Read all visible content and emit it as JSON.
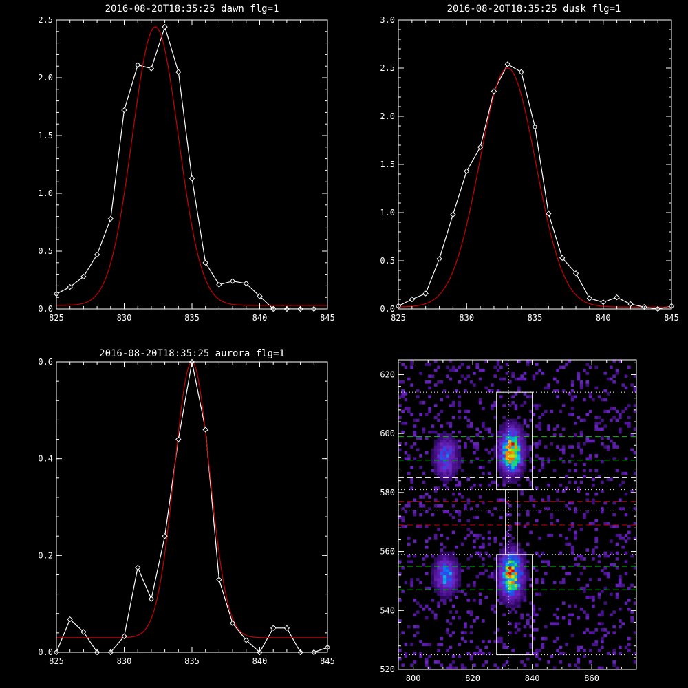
{
  "chart_data": [
    {
      "type": "line",
      "title": "2016-08-20T18:35:25 dawn flg=1",
      "xlim": [
        825,
        845
      ],
      "ylim": [
        0,
        2.5
      ],
      "xticks": [
        825,
        830,
        835,
        840,
        845
      ],
      "xtick_labels": [
        "825",
        "830",
        "835",
        "840",
        "845"
      ],
      "yticks": [
        0,
        0.5,
        1.0,
        1.5,
        2.0,
        2.5
      ],
      "ytick_labels": [
        "0.0",
        "0.5",
        "1.0",
        "1.5",
        "2.0",
        "2.5"
      ],
      "series": [
        {
          "color": "#ffffff",
          "marker": "diamond",
          "x": [
            825,
            826,
            827,
            828,
            829,
            830,
            831,
            832,
            833,
            834,
            835,
            836,
            837,
            838,
            839,
            840,
            841,
            842,
            843,
            844
          ],
          "y": [
            0.13,
            0.19,
            0.28,
            0.47,
            0.78,
            1.72,
            2.11,
            2.08,
            2.44,
            2.05,
            1.13,
            0.4,
            0.21,
            0.24,
            0.22,
            0.11,
            0.0,
            0.0,
            0.0,
            0.0
          ]
        },
        {
          "color": "#cc0000",
          "gaussian": {
            "a": 2.41,
            "mu": 832.3,
            "sigma": 1.7,
            "c": 0.03
          }
        }
      ]
    },
    {
      "type": "line",
      "title": "2016-08-20T18:35:25 dusk flg=1",
      "xlim": [
        825,
        845
      ],
      "ylim": [
        0,
        3.0
      ],
      "xticks": [
        825,
        830,
        835,
        840,
        845
      ],
      "xtick_labels": [
        "825",
        "830",
        "835",
        "840",
        "845"
      ],
      "yticks": [
        0,
        0.5,
        1.0,
        1.5,
        2.0,
        2.5,
        3.0
      ],
      "ytick_labels": [
        "0.0",
        "0.5",
        "1.0",
        "1.5",
        "2.0",
        "2.5",
        "3.0"
      ],
      "series": [
        {
          "color": "#ffffff",
          "marker": "diamond",
          "x": [
            825,
            826,
            827,
            828,
            829,
            830,
            831,
            832,
            833,
            834,
            835,
            836,
            837,
            838,
            839,
            840,
            841,
            842,
            843,
            844,
            845
          ],
          "y": [
            0.03,
            0.1,
            0.16,
            0.52,
            0.98,
            1.43,
            1.68,
            2.26,
            2.54,
            2.46,
            1.89,
            0.99,
            0.53,
            0.37,
            0.11,
            0.07,
            0.12,
            0.05,
            0.02,
            0.0,
            0.03
          ]
        },
        {
          "color": "#cc0000",
          "gaussian": {
            "a": 2.48,
            "mu": 833.0,
            "sigma": 2.05,
            "c": 0.02
          }
        }
      ]
    },
    {
      "type": "line",
      "title": "2016-08-20T18:35:25 aurora flg=1",
      "xlim": [
        825,
        845
      ],
      "ylim": [
        0,
        0.6
      ],
      "xticks": [
        825,
        830,
        835,
        840,
        845
      ],
      "xtick_labels": [
        "825",
        "830",
        "835",
        "840",
        "845"
      ],
      "yticks": [
        0,
        0.2,
        0.4,
        0.6
      ],
      "ytick_labels": [
        "0.0",
        "0.2",
        "0.4",
        "0.6"
      ],
      "series": [
        {
          "color": "#ffffff",
          "marker": "diamond",
          "x": [
            825,
            826,
            827,
            828,
            829,
            830,
            831,
            832,
            833,
            834,
            835,
            836,
            837,
            838,
            839,
            840,
            841,
            842,
            843,
            844,
            845
          ],
          "y": [
            0.0,
            0.068,
            0.042,
            0.0,
            0.0,
            0.033,
            0.175,
            0.11,
            0.24,
            0.44,
            0.6,
            0.46,
            0.15,
            0.06,
            0.025,
            0.0,
            0.05,
            0.05,
            0.0,
            0.0,
            0.01
          ]
        },
        {
          "color": "#cc0000",
          "gaussian": {
            "a": 0.57,
            "mu": 835.0,
            "sigma": 1.3,
            "c": 0.03
          }
        }
      ]
    },
    {
      "type": "heatmap",
      "title": "",
      "xlim": [
        795,
        875
      ],
      "ylim": [
        520,
        625
      ],
      "xticks": [
        800,
        820,
        840,
        860
      ],
      "xtick_labels": [
        "800",
        "820",
        "840",
        "860"
      ],
      "yticks": [
        520,
        540,
        560,
        580,
        600,
        620
      ],
      "ytick_labels": [
        "520",
        "540",
        "560",
        "580",
        "600",
        "620"
      ],
      "blobs": [
        {
          "x": 833,
          "y": 594,
          "sx": 2.5,
          "sy": 5,
          "amp": 1.0
        },
        {
          "x": 833,
          "y": 552,
          "sx": 2.5,
          "sy": 5,
          "amp": 1.0
        },
        {
          "x": 811,
          "y": 592,
          "sx": 2.5,
          "sy": 4.5,
          "amp": 0.5
        },
        {
          "x": 811,
          "y": 552,
          "sx": 2.5,
          "sy": 4,
          "amp": 0.6
        }
      ],
      "boxes": [
        {
          "x0": 828,
          "x1": 840,
          "y0": 581,
          "y1": 614
        },
        {
          "x0": 828,
          "x1": 840,
          "y0": 525,
          "y1": 559
        },
        {
          "x0": 831,
          "x1": 835,
          "y0": 559,
          "y1": 581
        }
      ],
      "hlines": [
        {
          "y": 614,
          "color": "#ffffff",
          "style": "dotted"
        },
        {
          "y": 599,
          "color": "#00cc00",
          "style": "dashed"
        },
        {
          "y": 591,
          "color": "#00cc00",
          "style": "dashed"
        },
        {
          "y": 585,
          "color": "#ffffff",
          "style": "dashed"
        },
        {
          "y": 581,
          "color": "#ffffff",
          "style": "dotted"
        },
        {
          "y": 577,
          "color": "#cc0000",
          "style": "dashed"
        },
        {
          "y": 574,
          "color": "#ffffff",
          "style": "dotted"
        },
        {
          "y": 569,
          "color": "#cc0000",
          "style": "dashed"
        },
        {
          "y": 559,
          "color": "#ffffff",
          "style": "dotted"
        },
        {
          "y": 555,
          "color": "#00cc00",
          "style": "dashed"
        },
        {
          "y": 547,
          "color": "#00cc00",
          "style": "dashed"
        },
        {
          "y": 525,
          "color": "#ffffff",
          "style": "dotted"
        }
      ],
      "vlines": [
        {
          "x": 832,
          "color": "#ffffff",
          "style": "dotted"
        }
      ]
    }
  ]
}
